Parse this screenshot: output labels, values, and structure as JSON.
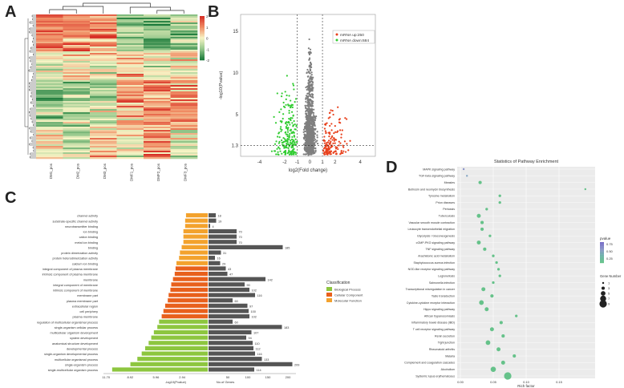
{
  "panels": {
    "a": "A",
    "b": "B",
    "c": "C",
    "d": "D"
  },
  "heatmap": {
    "scale_ticks": [
      "2",
      "1",
      "0",
      "-1",
      "-2"
    ],
    "columns": [
      "DM1_pos",
      "DM2_pos",
      "DM3_pos",
      "DMF1_pos",
      "DMF2_pos",
      "DMF3_pos"
    ],
    "colors": {
      "high": "#d73027",
      "mid": "#f7f4c5",
      "low": "#1a7a3a"
    }
  },
  "chart_data": [
    {
      "type": "scatter",
      "id": "volcano",
      "xlabel": "log2(Fold change)",
      "ylabel": "-log10(Pvalue)",
      "xlim": [
        -5.5,
        5.2
      ],
      "ylim": [
        0,
        17
      ],
      "x_ticks": [
        "-4",
        "-2",
        "-1",
        "0",
        "1",
        "2",
        "4"
      ],
      "y_ticks": [
        "15",
        "10",
        "5",
        "1.3"
      ],
      "thresholds": {
        "fc": [
          -1,
          1
        ],
        "p": 1.3
      },
      "legend": [
        {
          "name": "mRNA up:250",
          "color": "#e8401c"
        },
        {
          "name": "mRNA down:684",
          "color": "#33cc33"
        }
      ]
    },
    {
      "type": "bar",
      "id": "go_classification",
      "xlabel_left": "-log10(Pvalue)",
      "xlabel_right": "No.of Genes",
      "left_ticks": [
        "11.70",
        "8.92",
        "5.96",
        "2.94"
      ],
      "right_ticks": [
        "50",
        "100",
        "150",
        "200"
      ],
      "left_max": 12,
      "right_max": 220,
      "legend_title": "Classification",
      "legend": [
        {
          "name": "Biological Process",
          "color": "#8dc63f"
        },
        {
          "name": "Cellular Component",
          "color": "#e8601c"
        },
        {
          "name": "Molecular Function",
          "color": "#f3a22d"
        }
      ],
      "terms": [
        {
          "label": "channel activity",
          "cls": "MF",
          "p": 2.5,
          "n": 18
        },
        {
          "label": "substrate-specific channel activity",
          "cls": "MF",
          "p": 2.6,
          "n": 19
        },
        {
          "label": "neurotransmitter binding",
          "cls": "MF",
          "p": 2.6,
          "n": 4
        },
        {
          "label": "ion binding",
          "cls": "MF",
          "p": 2.8,
          "n": 70
        },
        {
          "label": "cation binding",
          "cls": "MF",
          "p": 2.8,
          "n": 70
        },
        {
          "label": "metal ion binding",
          "cls": "MF",
          "p": 2.8,
          "n": 70
        },
        {
          "label": "binding",
          "cls": "MF",
          "p": 3.0,
          "n": 185
        },
        {
          "label": "protein dimerization activity",
          "cls": "MF",
          "p": 3.2,
          "n": 31
        },
        {
          "label": "protein heterodimerization activity",
          "cls": "MF",
          "p": 3.3,
          "n": 16
        },
        {
          "label": "calcium ion binding",
          "cls": "MF",
          "p": 3.6,
          "n": 29
        },
        {
          "label": "integral component of plasma membrane",
          "cls": "CC",
          "p": 3.7,
          "n": 43
        },
        {
          "label": "intrinsic component of plasma membrane",
          "cls": "CC",
          "p": 3.8,
          "n": 47
        },
        {
          "label": "membrane",
          "cls": "CC",
          "p": 4.0,
          "n": 142
        },
        {
          "label": "integral component of membrane",
          "cls": "CC",
          "p": 4.2,
          "n": 90
        },
        {
          "label": "intrinsic component of membrane",
          "cls": "CC",
          "p": 4.3,
          "n": 102
        },
        {
          "label": "membrane part",
          "cls": "CC",
          "p": 4.5,
          "n": 116
        },
        {
          "label": "plasma membrane part",
          "cls": "CC",
          "p": 4.6,
          "n": 60
        },
        {
          "label": "extracellular region",
          "cls": "CC",
          "p": 4.9,
          "n": 97
        },
        {
          "label": "cell periphery",
          "cls": "CC",
          "p": 5.1,
          "n": 100
        },
        {
          "label": "plasma membrane",
          "cls": "CC",
          "p": 5.3,
          "n": 102
        },
        {
          "label": "regulation of multicellular organismal process",
          "cls": "BP",
          "p": 5.6,
          "n": 60
        },
        {
          "label": "single-organism cellular process",
          "cls": "BP",
          "p": 5.8,
          "n": 183
        },
        {
          "label": "multicellular organism development",
          "cls": "BP",
          "p": 6.2,
          "n": 107
        },
        {
          "label": "system development",
          "cls": "BP",
          "p": 6.5,
          "n": 94
        },
        {
          "label": "anatomical structure development",
          "cls": "BP",
          "p": 6.8,
          "n": 110
        },
        {
          "label": "developmental process",
          "cls": "BP",
          "p": 7.2,
          "n": 112
        },
        {
          "label": "single-organism developmental process",
          "cls": "BP",
          "p": 7.6,
          "n": 116
        },
        {
          "label": "multicellular organismal process",
          "cls": "BP",
          "p": 8.1,
          "n": 133
        },
        {
          "label": "single-organism process",
          "cls": "BP",
          "p": 8.9,
          "n": 209
        },
        {
          "label": "single-multicellular organism process",
          "cls": "BP",
          "p": 11.0,
          "n": 114
        }
      ]
    },
    {
      "type": "scatter",
      "id": "kegg_enrichment",
      "title": "Statistics of Pathway Enrichment",
      "xlabel": "Rich factor",
      "x_ticks": [
        "0.00",
        "0.05",
        "0.10",
        "0.15"
      ],
      "xlim": [
        0.0,
        0.2
      ],
      "legend_color_title": "pvalue",
      "legend_color_ticks": [
        "0.75",
        "0.50",
        "0.25"
      ],
      "legend_size_title": "Gene Number",
      "legend_size_ticks": [
        "1",
        "3",
        "5",
        "7",
        "9"
      ],
      "pathways": [
        {
          "name": "MAPK signaling pathway",
          "rich": 0.005,
          "genes": 1,
          "color": "#8a93c8"
        },
        {
          "name": "TGF-beta signaling pathway",
          "rich": 0.01,
          "genes": 1,
          "color": "#86a8c4"
        },
        {
          "name": "Measles",
          "rich": 0.03,
          "genes": 3,
          "color": "#66c28a"
        },
        {
          "name": "Butirosin and neomycin biosynthesis",
          "rich": 0.19,
          "genes": 1,
          "color": "#66c28a"
        },
        {
          "name": "Tyrosine metabolism",
          "rich": 0.06,
          "genes": 2,
          "color": "#66c28a"
        },
        {
          "name": "Prion diseases",
          "rich": 0.06,
          "genes": 2,
          "color": "#66c28a"
        },
        {
          "name": "Pertussis",
          "rich": 0.04,
          "genes": 2,
          "color": "#66c28a"
        },
        {
          "name": "Tuberculosis",
          "rich": 0.028,
          "genes": 4,
          "color": "#66c28a"
        },
        {
          "name": "Vascular smooth muscle contraction",
          "rich": 0.033,
          "genes": 3,
          "color": "#66c28a"
        },
        {
          "name": "Leukocyte transendothelial migration",
          "rich": 0.033,
          "genes": 3,
          "color": "#66c28a"
        },
        {
          "name": "Glycolysis / Gluconeogenesis",
          "rich": 0.045,
          "genes": 2,
          "color": "#66c28a"
        },
        {
          "name": "cGMP-PKG signaling pathway",
          "rich": 0.028,
          "genes": 4,
          "color": "#66c28a"
        },
        {
          "name": "TNF signaling pathway",
          "rich": 0.037,
          "genes": 3,
          "color": "#66c28a"
        },
        {
          "name": "Arachidonic acid metabolism",
          "rich": 0.05,
          "genes": 2,
          "color": "#66c28a"
        },
        {
          "name": "Staphylococcus aureus infection",
          "rich": 0.055,
          "genes": 2,
          "color": "#66c28a"
        },
        {
          "name": "NOD-like receptor signaling pathway",
          "rich": 0.058,
          "genes": 2,
          "color": "#66c28a"
        },
        {
          "name": "Legionellosis",
          "rich": 0.06,
          "genes": 2,
          "color": "#66c28a"
        },
        {
          "name": "Salmonella infection",
          "rich": 0.05,
          "genes": 2,
          "color": "#66c28a"
        },
        {
          "name": "Transcriptional misregulation in cancer",
          "rich": 0.035,
          "genes": 4,
          "color": "#66c28a"
        },
        {
          "name": "Taste transduction",
          "rich": 0.048,
          "genes": 3,
          "color": "#66c28a"
        },
        {
          "name": "Cytokine-cytokine receptor interaction",
          "rich": 0.032,
          "genes": 5,
          "color": "#66c28a"
        },
        {
          "name": "Hippo signaling pathway",
          "rich": 0.04,
          "genes": 4,
          "color": "#66c28a"
        },
        {
          "name": "African trypanosomiasis",
          "rich": 0.085,
          "genes": 2,
          "color": "#66c28a"
        },
        {
          "name": "Inflammatory bowel disease (IBD)",
          "rich": 0.062,
          "genes": 3,
          "color": "#66c28a"
        },
        {
          "name": "T cell receptor signaling pathway",
          "rich": 0.048,
          "genes": 4,
          "color": "#66c28a"
        },
        {
          "name": "Renin secretion",
          "rich": 0.065,
          "genes": 3,
          "color": "#66c28a"
        },
        {
          "name": "Tight junction",
          "rich": 0.042,
          "genes": 5,
          "color": "#66c28a"
        },
        {
          "name": "Rheumatoid arthritis",
          "rich": 0.058,
          "genes": 4,
          "color": "#66c28a"
        },
        {
          "name": "Malaria",
          "rich": 0.082,
          "genes": 3,
          "color": "#66c28a"
        },
        {
          "name": "Complement and coagulation cascades",
          "rich": 0.065,
          "genes": 4,
          "color": "#66c28a"
        },
        {
          "name": "Alcoholism",
          "rich": 0.05,
          "genes": 6,
          "color": "#66c28a"
        },
        {
          "name": "Systemic lupus erythematosus",
          "rich": 0.072,
          "genes": 9,
          "color": "#66c28a"
        }
      ]
    }
  ]
}
